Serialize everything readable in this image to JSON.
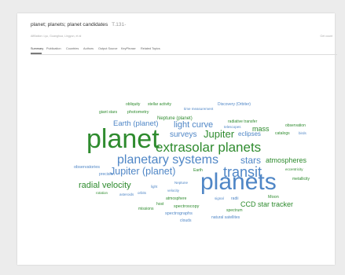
{
  "header": {
    "title": "planet; planets; planet candidates",
    "count": "T.131-",
    "meta_left": "Affiliation: Lyu, Guanghua, Lingyun, et al",
    "meta_right": "Get count"
  },
  "tabs": [
    {
      "label": "Summary",
      "active": true
    },
    {
      "label": "Publication",
      "active": false
    },
    {
      "label": "Countries",
      "active": false
    },
    {
      "label": "Authors",
      "active": false
    },
    {
      "label": "Output Source",
      "active": false
    },
    {
      "label": "KeyPhrase",
      "active": false
    },
    {
      "label": "Related Topics",
      "active": false
    }
  ],
  "colors": {
    "green": "#2e8b2e",
    "blue": "#4f86c6",
    "gray": "#666666"
  },
  "cloud_words": [
    {
      "text": "obliquity",
      "color": "green"
    },
    {
      "text": "stellar activity",
      "color": "green"
    },
    {
      "text": "time measurement",
      "color": "blue"
    },
    {
      "text": "Discovery (Orbiter)",
      "color": "blue"
    },
    {
      "text": "giant stars",
      "color": "green"
    },
    {
      "text": "photometry",
      "color": "green"
    },
    {
      "text": "Neptune (planet)",
      "color": "green"
    },
    {
      "text": "Earth (planet)",
      "color": "blue"
    },
    {
      "text": "light curve",
      "color": "blue"
    },
    {
      "text": "telescopes",
      "color": "blue"
    },
    {
      "text": "radiative transfer",
      "color": "green"
    },
    {
      "text": "observation",
      "color": "green"
    },
    {
      "text": "planet",
      "color": "green"
    },
    {
      "text": "surveys",
      "color": "blue"
    },
    {
      "text": "Jupiter",
      "color": "green"
    },
    {
      "text": "eclipses",
      "color": "blue"
    },
    {
      "text": "mass",
      "color": "green"
    },
    {
      "text": "catalogs",
      "color": "green"
    },
    {
      "text": "birds",
      "color": "blue"
    },
    {
      "text": "extrasolar planets",
      "color": "green"
    },
    {
      "text": "planetary systems",
      "color": "blue"
    },
    {
      "text": "stars",
      "color": "blue"
    },
    {
      "text": "atmospheres",
      "color": "green"
    },
    {
      "text": "observatories",
      "color": "blue"
    },
    {
      "text": "precision",
      "color": "blue"
    },
    {
      "text": "Jupiter (planet)",
      "color": "blue"
    },
    {
      "text": "Earth",
      "color": "green"
    },
    {
      "text": "transit",
      "color": "blue"
    },
    {
      "text": "eccentricity",
      "color": "green"
    },
    {
      "text": "radial velocity",
      "color": "green"
    },
    {
      "text": "light",
      "color": "blue"
    },
    {
      "text": "Neptune",
      "color": "blue"
    },
    {
      "text": "planets",
      "color": "blue"
    },
    {
      "text": "metallicity",
      "color": "green"
    },
    {
      "text": "rotation",
      "color": "green"
    },
    {
      "text": "asteroids",
      "color": "blue"
    },
    {
      "text": "orbits",
      "color": "blue"
    },
    {
      "text": "velocity",
      "color": "blue"
    },
    {
      "text": "atmosphere",
      "color": "green"
    },
    {
      "text": "signal",
      "color": "blue"
    },
    {
      "text": "radii",
      "color": "blue"
    },
    {
      "text": "CCD star tracker",
      "color": "green"
    },
    {
      "text": "host",
      "color": "green"
    },
    {
      "text": "spectroscopy",
      "color": "green"
    },
    {
      "text": "Moon",
      "color": "green"
    },
    {
      "text": "missions",
      "color": "green"
    },
    {
      "text": "spectrum",
      "color": "green"
    },
    {
      "text": "spectrographs",
      "color": "blue"
    },
    {
      "text": "natural satellites",
      "color": "blue"
    },
    {
      "text": "clouds",
      "color": "blue"
    }
  ]
}
